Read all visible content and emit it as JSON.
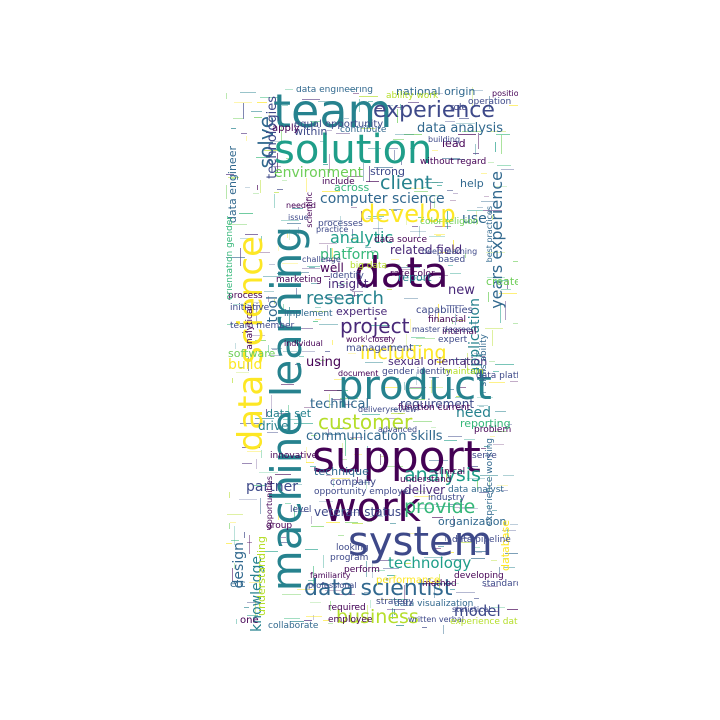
{
  "palette": [
    "#440154",
    "#482878",
    "#3e4989",
    "#31688e",
    "#26828e",
    "#1f9e89",
    "#35b779",
    "#6ece58",
    "#b5de2b",
    "#fde725"
  ],
  "words": [
    {
      "id": "team",
      "text": "team",
      "color": "#26828e"
    },
    {
      "id": "experience",
      "text": "experience",
      "color": "#3e4989"
    },
    {
      "id": "national-origin",
      "text": "national origin",
      "color": "#31688e"
    },
    {
      "id": "solution",
      "text": "solution",
      "color": "#1f9e89"
    },
    {
      "id": "data-analysis",
      "text": "data analysis",
      "color": "#31688e"
    },
    {
      "id": "equal-opportunity",
      "text": "equal opportunity",
      "color": "#3e4989"
    },
    {
      "id": "client",
      "text": "client",
      "color": "#26828e"
    },
    {
      "id": "environment",
      "text": "environment",
      "color": "#6ece58"
    },
    {
      "id": "computer-science",
      "text": "computer science",
      "color": "#31688e"
    },
    {
      "id": "develop",
      "text": "develop",
      "color": "#fde725"
    },
    {
      "id": "analytic",
      "text": "analytic",
      "color": "#1f9e89"
    },
    {
      "id": "data-big",
      "text": "data",
      "color": "#440154"
    },
    {
      "id": "platform",
      "text": "platform",
      "color": "#35b779"
    },
    {
      "id": "related-field",
      "text": "related field",
      "color": "#482878"
    },
    {
      "id": "research",
      "text": "research",
      "color": "#26828e"
    },
    {
      "id": "project",
      "text": "project",
      "color": "#482878"
    },
    {
      "id": "years-experience",
      "text": "years experience",
      "color": "#31688e"
    },
    {
      "id": "application",
      "text": "application",
      "color": "#26828e"
    },
    {
      "id": "including",
      "text": "including",
      "color": "#fde725"
    },
    {
      "id": "product",
      "text": "product",
      "color": "#26828e"
    },
    {
      "id": "sexual-orientation",
      "text": "sexual orientation",
      "color": "#482878"
    },
    {
      "id": "customer",
      "text": "customer",
      "color": "#b5de2b"
    },
    {
      "id": "technical",
      "text": "technical",
      "color": "#31688e"
    },
    {
      "id": "requirement",
      "text": "requirement",
      "color": "#3e4989"
    },
    {
      "id": "need",
      "text": "need",
      "color": "#26828e"
    },
    {
      "id": "communication-skills",
      "text": "communication skills",
      "color": "#31688e"
    },
    {
      "id": "support",
      "text": "support",
      "color": "#440154"
    },
    {
      "id": "analysis",
      "text": "analysis",
      "color": "#1f9e89"
    },
    {
      "id": "work",
      "text": "work",
      "color": "#440154"
    },
    {
      "id": "provide",
      "text": "provide",
      "color": "#35b779"
    },
    {
      "id": "system",
      "text": "system",
      "color": "#3e4989"
    },
    {
      "id": "technology",
      "text": "technology",
      "color": "#1f9e89"
    },
    {
      "id": "data-scientist",
      "text": "data scientist",
      "color": "#31688e"
    },
    {
      "id": "business",
      "text": "business",
      "color": "#b5de2b"
    },
    {
      "id": "model",
      "text": "model",
      "color": "#3e4989"
    },
    {
      "id": "machine-learning",
      "text": "machine learning",
      "color": "#26828e"
    },
    {
      "id": "data-science",
      "text": "data science",
      "color": "#fde725"
    },
    {
      "id": "use",
      "text": "use",
      "color": "#31688e"
    },
    {
      "id": "well",
      "text": "well",
      "color": "#440154"
    },
    {
      "id": "insight",
      "text": "insight",
      "color": "#482878"
    },
    {
      "id": "new",
      "text": "new",
      "color": "#482878"
    },
    {
      "id": "create",
      "text": "create",
      "color": "#6ece58"
    },
    {
      "id": "tool",
      "text": "tool",
      "color": "#31688e"
    },
    {
      "id": "build",
      "text": "build",
      "color": "#fde725"
    },
    {
      "id": "using",
      "text": "using",
      "color": "#440154"
    },
    {
      "id": "design",
      "text": "design",
      "color": "#31688e"
    },
    {
      "id": "knowledge",
      "text": "knowledge",
      "color": "#26828e"
    },
    {
      "id": "partner",
      "text": "partner",
      "color": "#3e4989"
    },
    {
      "id": "deliver",
      "text": "deliver",
      "color": "#482878"
    },
    {
      "id": "organization",
      "text": "organization",
      "color": "#31688e"
    },
    {
      "id": "veteran-status",
      "text": "veteran status",
      "color": "#3e4989"
    },
    {
      "id": "technique",
      "text": "technique",
      "color": "#31688e"
    },
    {
      "id": "data-set",
      "text": "data set",
      "color": "#26828e"
    },
    {
      "id": "drive",
      "text": "drive",
      "color": "#26828e"
    },
    {
      "id": "solve",
      "text": "solve",
      "color": "#31688e"
    },
    {
      "id": "technologies",
      "text": "technologies",
      "color": "#3e4989"
    },
    {
      "id": "data-engineer",
      "text": "data engineer",
      "color": "#31688e"
    },
    {
      "id": "report",
      "text": "report",
      "color": "#26828e"
    },
    {
      "id": "strong",
      "text": "strong",
      "color": "#3e4989"
    },
    {
      "id": "across",
      "text": "across",
      "color": "#35b779"
    },
    {
      "id": "lead",
      "text": "lead",
      "color": "#440154"
    },
    {
      "id": "help",
      "text": "help",
      "color": "#31688e"
    },
    {
      "id": "within",
      "text": "within",
      "color": "#3e4989"
    },
    {
      "id": "apply",
      "text": "apply",
      "color": "#440154"
    },
    {
      "id": "contribute",
      "text": "contribute",
      "color": "#31688e"
    },
    {
      "id": "without-regard",
      "text": "without regard",
      "color": "#440154"
    },
    {
      "id": "expertise",
      "text": "expertise",
      "color": "#482878"
    },
    {
      "id": "capabilities",
      "text": "capabilities",
      "color": "#3e4989"
    },
    {
      "id": "management",
      "text": "management",
      "color": "#3e4989"
    },
    {
      "id": "data-visualization",
      "text": "data visualization",
      "color": "#31688e"
    },
    {
      "id": "strategy",
      "text": "strategy",
      "color": "#3e4989"
    },
    {
      "id": "employee",
      "text": "employee",
      "color": "#440154"
    },
    {
      "id": "written-verbal",
      "text": "written verbal",
      "color": "#3e4989"
    },
    {
      "id": "perform",
      "text": "perform",
      "color": "#440154"
    },
    {
      "id": "program",
      "text": "program",
      "color": "#3e4989"
    },
    {
      "id": "opportunity-employer",
      "text": "opportunity employer",
      "color": "#3e4989"
    },
    {
      "id": "understand",
      "text": "understand",
      "color": "#440154"
    },
    {
      "id": "industry",
      "text": "industry",
      "color": "#3e4989"
    },
    {
      "id": "data-analyst",
      "text": "data analyst",
      "color": "#31688e"
    },
    {
      "id": "problem",
      "text": "problem",
      "color": "#440154"
    },
    {
      "id": "experience-working",
      "text": "experience working",
      "color": "#31688e"
    },
    {
      "id": "gender-identity",
      "text": "gender identity",
      "color": "#3e4989"
    },
    {
      "id": "financial",
      "text": "financial",
      "color": "#440154"
    },
    {
      "id": "skills-ability",
      "text": "skills ability",
      "color": "#31688e"
    },
    {
      "id": "software",
      "text": "software",
      "color": "#6ece58"
    },
    {
      "id": "data-source",
      "text": "data source",
      "color": "#440154"
    },
    {
      "id": "processes",
      "text": "processes",
      "color": "#3e4989"
    },
    {
      "id": "big-data",
      "text": "big data",
      "color": "#b5de2b"
    },
    {
      "id": "race-color",
      "text": "race color",
      "color": "#440154"
    },
    {
      "id": "based",
      "text": "based",
      "color": "#3e4989"
    },
    {
      "id": "identify",
      "text": "identify",
      "color": "#3e4989"
    },
    {
      "id": "internal",
      "text": "internal",
      "color": "#440154"
    },
    {
      "id": "expert",
      "text": "expert",
      "color": "#3e4989"
    },
    {
      "id": "etc",
      "text": "etc",
      "color": "#31688e"
    },
    {
      "id": "level",
      "text": "level",
      "color": "#3e4989"
    },
    {
      "id": "method",
      "text": "method",
      "color": "#440154"
    },
    {
      "id": "standard",
      "text": "standard",
      "color": "#3e4989"
    },
    {
      "id": "developing",
      "text": "developing",
      "color": "#440154"
    },
    {
      "id": "required",
      "text": "required",
      "color": "#440154"
    },
    {
      "id": "include",
      "text": "include",
      "color": "#440154"
    },
    {
      "id": "operation",
      "text": "operation",
      "color": "#3e4989"
    },
    {
      "id": "data-engineering",
      "text": "data engineering",
      "color": "#31688e"
    },
    {
      "id": "understanding",
      "text": "understanding",
      "color": "#b5de2b"
    },
    {
      "id": "performance",
      "text": "performance",
      "color": "#fde725"
    },
    {
      "id": "best-practices",
      "text": "best practices",
      "color": "#31688e"
    },
    {
      "id": "role",
      "text": "role",
      "color": "#3e4989"
    },
    {
      "id": "function-current",
      "text": "function current",
      "color": "#440154"
    },
    {
      "id": "delivery-review",
      "text": "deliveryreview",
      "color": "#3e4989"
    },
    {
      "id": "reporting",
      "text": "reporting",
      "color": "#35b779"
    },
    {
      "id": "serve",
      "text": "serve",
      "color": "#3e4989"
    },
    {
      "id": "database",
      "text": "database",
      "color": "#fde725"
    },
    {
      "id": "data-pipeline",
      "text": "data pipeline",
      "color": "#3e4989"
    },
    {
      "id": "collaborate",
      "text": "collaborate",
      "color": "#31688e"
    },
    {
      "id": "team-member",
      "text": "team member",
      "color": "#3e4989"
    },
    {
      "id": "clinical",
      "text": "clinical",
      "color": "#440154"
    },
    {
      "id": "maintain",
      "text": "maintain",
      "color": "#b5de2b"
    },
    {
      "id": "company",
      "text": "company",
      "color": "#3e4989"
    },
    {
      "id": "one",
      "text": "one",
      "color": "#440154"
    },
    {
      "id": "group",
      "text": "group",
      "color": "#440154"
    },
    {
      "id": "looking",
      "text": "looking",
      "color": "#3e4989"
    },
    {
      "id": "innovative",
      "text": "innovative",
      "color": "#440154"
    },
    {
      "id": "ability-work",
      "text": "ability work",
      "color": "#b5de2b"
    },
    {
      "id": "color-religion",
      "text": "color religion",
      "color": "#6ece58"
    },
    {
      "id": "process",
      "text": "process",
      "color": "#440154"
    },
    {
      "id": "initiative",
      "text": "initiative",
      "color": "#3e4989"
    },
    {
      "id": "practice",
      "text": "practice",
      "color": "#3e4989"
    },
    {
      "id": "data-platform",
      "text": "data platform",
      "color": "#3e4989"
    },
    {
      "id": "deep-learning",
      "text": "deep learning",
      "color": "#3e4989"
    },
    {
      "id": "master-degree",
      "text": "master degree",
      "color": "#3e4989"
    },
    {
      "id": "marketing",
      "text": "marketing",
      "color": "#440154"
    },
    {
      "id": "needed",
      "text": "needed",
      "color": "#440154"
    },
    {
      "id": "issue",
      "text": "issue",
      "color": "#3e4989"
    },
    {
      "id": "scientific",
      "text": "scientific",
      "color": "#440154"
    },
    {
      "id": "work-closely",
      "text": "work closely",
      "color": "#440154"
    },
    {
      "id": "document",
      "text": "document",
      "color": "#440154"
    },
    {
      "id": "implement",
      "text": "implement",
      "color": "#31688e"
    },
    {
      "id": "individual",
      "text": "individual",
      "color": "#440154"
    },
    {
      "id": "professional",
      "text": "professional",
      "color": "#3e4989"
    },
    {
      "id": "familiarity",
      "text": "familiarity",
      "color": "#440154"
    },
    {
      "id": "advanced",
      "text": "advanced",
      "color": "#3e4989"
    },
    {
      "id": "building",
      "text": "building",
      "color": "#3e4989"
    },
    {
      "id": "position",
      "text": "position",
      "color": "#440154"
    },
    {
      "id": "experience-data",
      "text": "experience data",
      "color": "#b5de2b"
    },
    {
      "id": "analytical",
      "text": "analytical",
      "color": "#440154"
    },
    {
      "id": "orientation-gender",
      "text": "orientation gender",
      "color": "#35b779"
    },
    {
      "id": "opportunities",
      "text": "opportunities",
      "color": "#440154"
    },
    {
      "id": "challenge",
      "text": "challenge",
      "color": "#3e4989"
    },
    {
      "id": "statistical",
      "text": "statistical",
      "color": "#3e4989"
    }
  ]
}
